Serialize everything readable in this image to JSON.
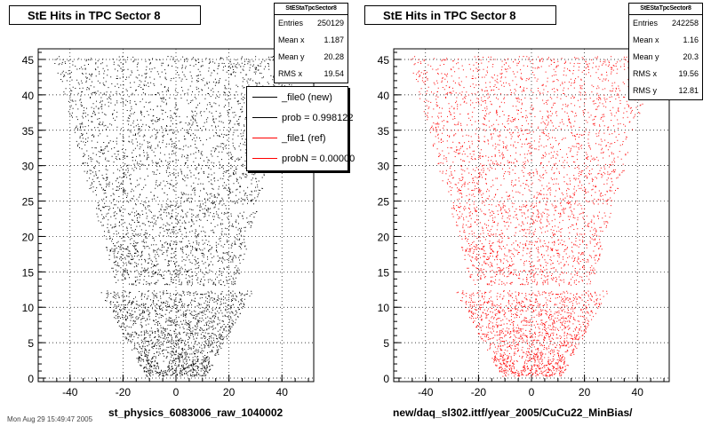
{
  "chart_data": [
    {
      "type": "scatter",
      "title": "StE Hits in TPC Sector 8",
      "xlabel": "st_physics_6083006_raw_1040002",
      "ylabel": "",
      "xlim": [
        -52,
        52
      ],
      "ylim": [
        -0.5,
        46.5
      ],
      "xticks": [
        -40,
        -20,
        0,
        20,
        40
      ],
      "yticks": [
        0,
        5,
        10,
        15,
        20,
        25,
        30,
        35,
        40,
        45
      ],
      "grid": true,
      "color": "#000000",
      "stats": {
        "title": "StEStaTpcSector8",
        "rows": [
          {
            "label": "Entries",
            "value": "250129"
          },
          {
            "label": "Mean x",
            "value": "1.187"
          },
          {
            "label": "Mean y",
            "value": "20.28"
          },
          {
            "label": "RMS x",
            "value": "19.54"
          }
        ]
      },
      "legend": {
        "entries": [
          {
            "label": "_file0 (new)",
            "color": "#000000"
          },
          {
            "label": "prob = 0.998122",
            "color": "#000000"
          },
          {
            "label": "_file1 (ref)",
            "color": "#ff0000"
          },
          {
            "label": "probN = 0.00000",
            "color": "#ff0000"
          }
        ]
      },
      "description": "Density of hits in TPC sector 8 pad-row (y) vs pad (x); trapezoidal sector shape, gap near y=12.5"
    },
    {
      "type": "scatter",
      "title": "StE Hits in TPC Sector 8",
      "xlabel": "new/daq_sl302.ittf/year_2005/CuCu22_MinBias/",
      "ylabel": "",
      "xlim": [
        -52,
        52
      ],
      "ylim": [
        -0.5,
        46.5
      ],
      "xticks": [
        -40,
        -20,
        0,
        20,
        40
      ],
      "yticks": [
        0,
        5,
        10,
        15,
        20,
        25,
        30,
        35,
        40,
        45
      ],
      "grid": true,
      "color": "#ff0000",
      "stats": {
        "title": "StEStaTpcSector8",
        "rows": [
          {
            "label": "Entries",
            "value": "242258"
          },
          {
            "label": "Mean x",
            "value": "1.16"
          },
          {
            "label": "Mean y",
            "value": "20.3"
          },
          {
            "label": "RMS x",
            "value": "19.56"
          },
          {
            "label": "RMS y",
            "value": "12.81"
          }
        ]
      }
    }
  ],
  "ui": {
    "left_title": "StE Hits in TPC Sector 8",
    "right_title": "StE Hits in TPC Sector 8",
    "left_caption": "st_physics_6083006_raw_1040002",
    "right_caption": "new/daq_sl302.ittf/year_2005/CuCu22_MinBias/",
    "footer": "Mon Aug 29 15:49:47 2005"
  }
}
